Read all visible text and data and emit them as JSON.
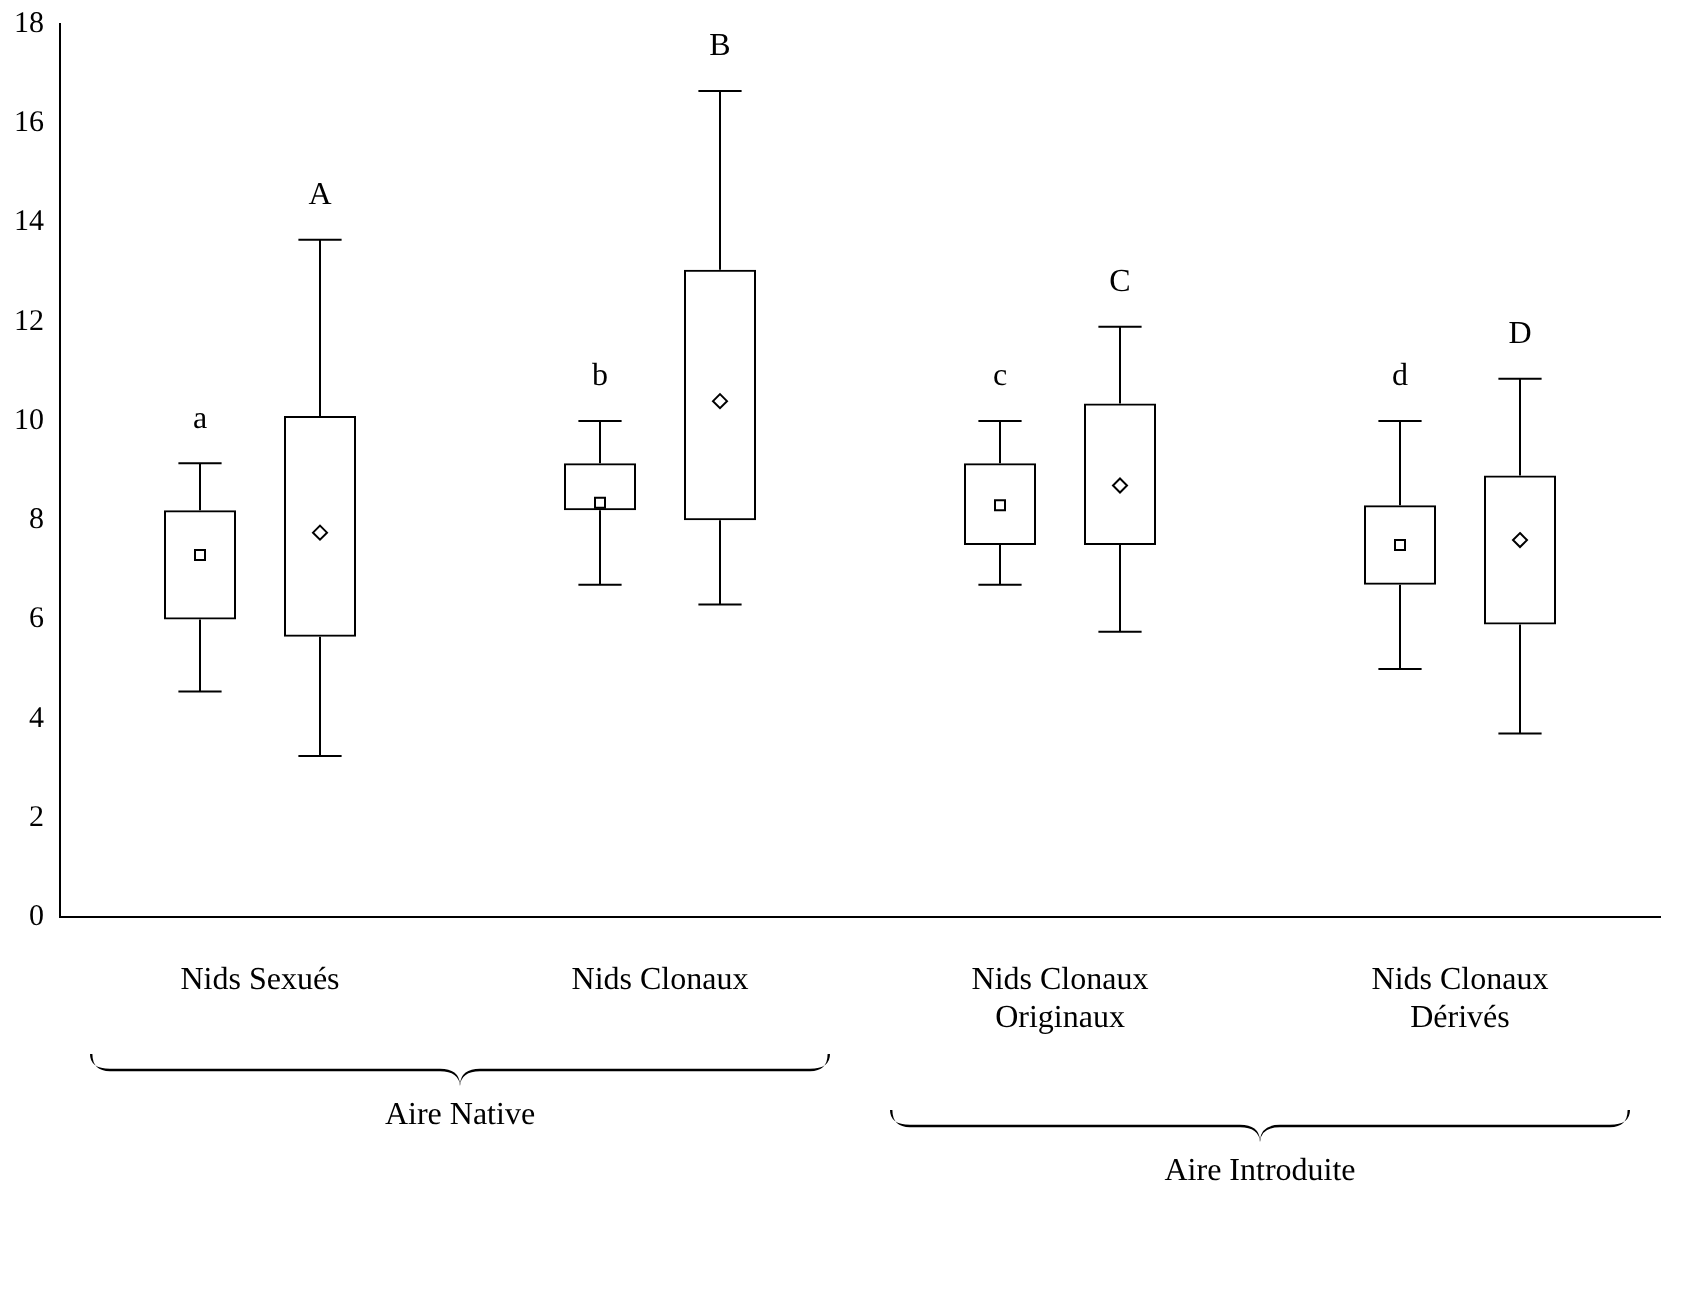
{
  "chart_data": {
    "type": "box",
    "categories": [
      "Nids Sexués",
      "Nids Clonaux",
      "Nids Clonaux\nOriginaux",
      "Nids Clonaux\nDérivés"
    ],
    "series": [
      {
        "color": "#000000",
        "marker": "square",
        "boxes": [
          {
            "low": 4.55,
            "q1": 6.0,
            "median": 7.3,
            "q3": 8.2,
            "high": 9.15
          },
          {
            "low": 6.7,
            "q1": 8.2,
            "median": 8.35,
            "q3": 9.15,
            "high": 10.0
          },
          {
            "low": 6.7,
            "q1": 7.5,
            "median": 8.3,
            "q3": 9.15,
            "high": 10.0
          },
          {
            "low": 5.0,
            "q1": 6.7,
            "median": 7.5,
            "q3": 8.3,
            "high": 10.0
          }
        ]
      },
      {
        "color": "#000000",
        "marker": "diamond",
        "boxes": [
          {
            "low": 3.25,
            "q1": 5.65,
            "median": 7.75,
            "q3": 10.1,
            "high": 13.65
          },
          {
            "low": 6.3,
            "q1": 8.0,
            "median": 10.4,
            "q3": 13.05,
            "high": 16.65
          },
          {
            "low": 5.75,
            "q1": 7.5,
            "median": 8.7,
            "q3": 10.35,
            "high": 11.9
          },
          {
            "low": 3.7,
            "q1": 5.9,
            "median": 7.6,
            "q3": 8.9,
            "high": 10.85
          }
        ]
      }
    ],
    "ylim": [
      0,
      18
    ],
    "yticks": [
      0,
      2,
      4,
      6,
      8,
      10,
      12,
      14,
      16,
      18
    ],
    "grid": false,
    "legend": false,
    "annotations": [
      "a",
      "A",
      "b",
      "B",
      "c",
      "C",
      "d",
      "D",
      "Aire Native",
      "Aire Introduite"
    ]
  }
}
